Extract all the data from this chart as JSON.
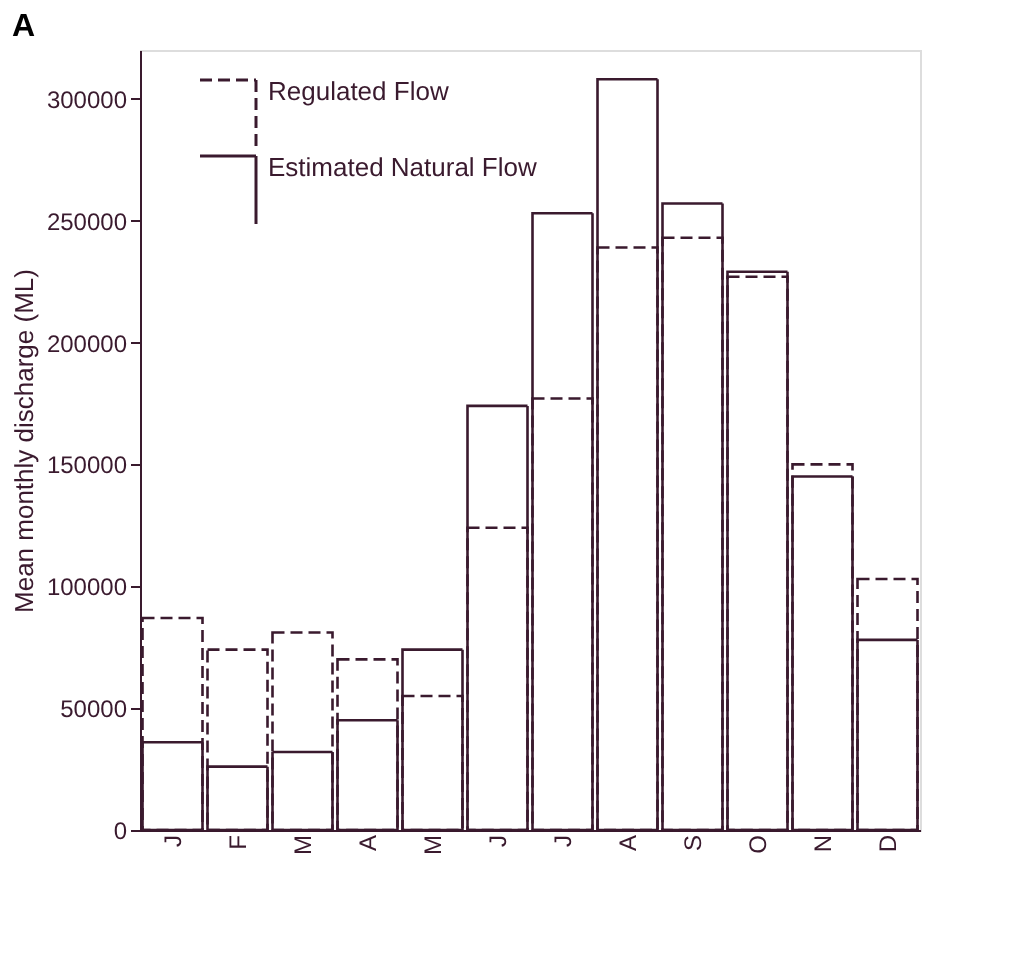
{
  "chart_data": {
    "type": "bar",
    "title": "A",
    "ylabel": "Mean monthly discharge (ML)",
    "categories": [
      "J",
      "F",
      "M",
      "A",
      "M",
      "J",
      "J",
      "A",
      "S",
      "O",
      "N",
      "D"
    ],
    "series": [
      {
        "name": "Regulated Flow",
        "color": "#3a1a2e",
        "line_style": "dashed",
        "values": [
          87000,
          74000,
          81000,
          70000,
          55000,
          124000,
          177000,
          239000,
          243000,
          227000,
          150000,
          103000
        ]
      },
      {
        "name": "Estimated Natural Flow",
        "color": "#3a1a2e",
        "line_style": "solid",
        "values": [
          36000,
          26000,
          32000,
          45000,
          74000,
          174000,
          253000,
          308000,
          257000,
          229000,
          145000,
          78000
        ]
      }
    ],
    "ylim": [
      0,
      320000
    ],
    "yticks": [
      0,
      50000,
      100000,
      150000,
      200000,
      250000,
      300000
    ],
    "grid": false,
    "legend": "top left"
  }
}
